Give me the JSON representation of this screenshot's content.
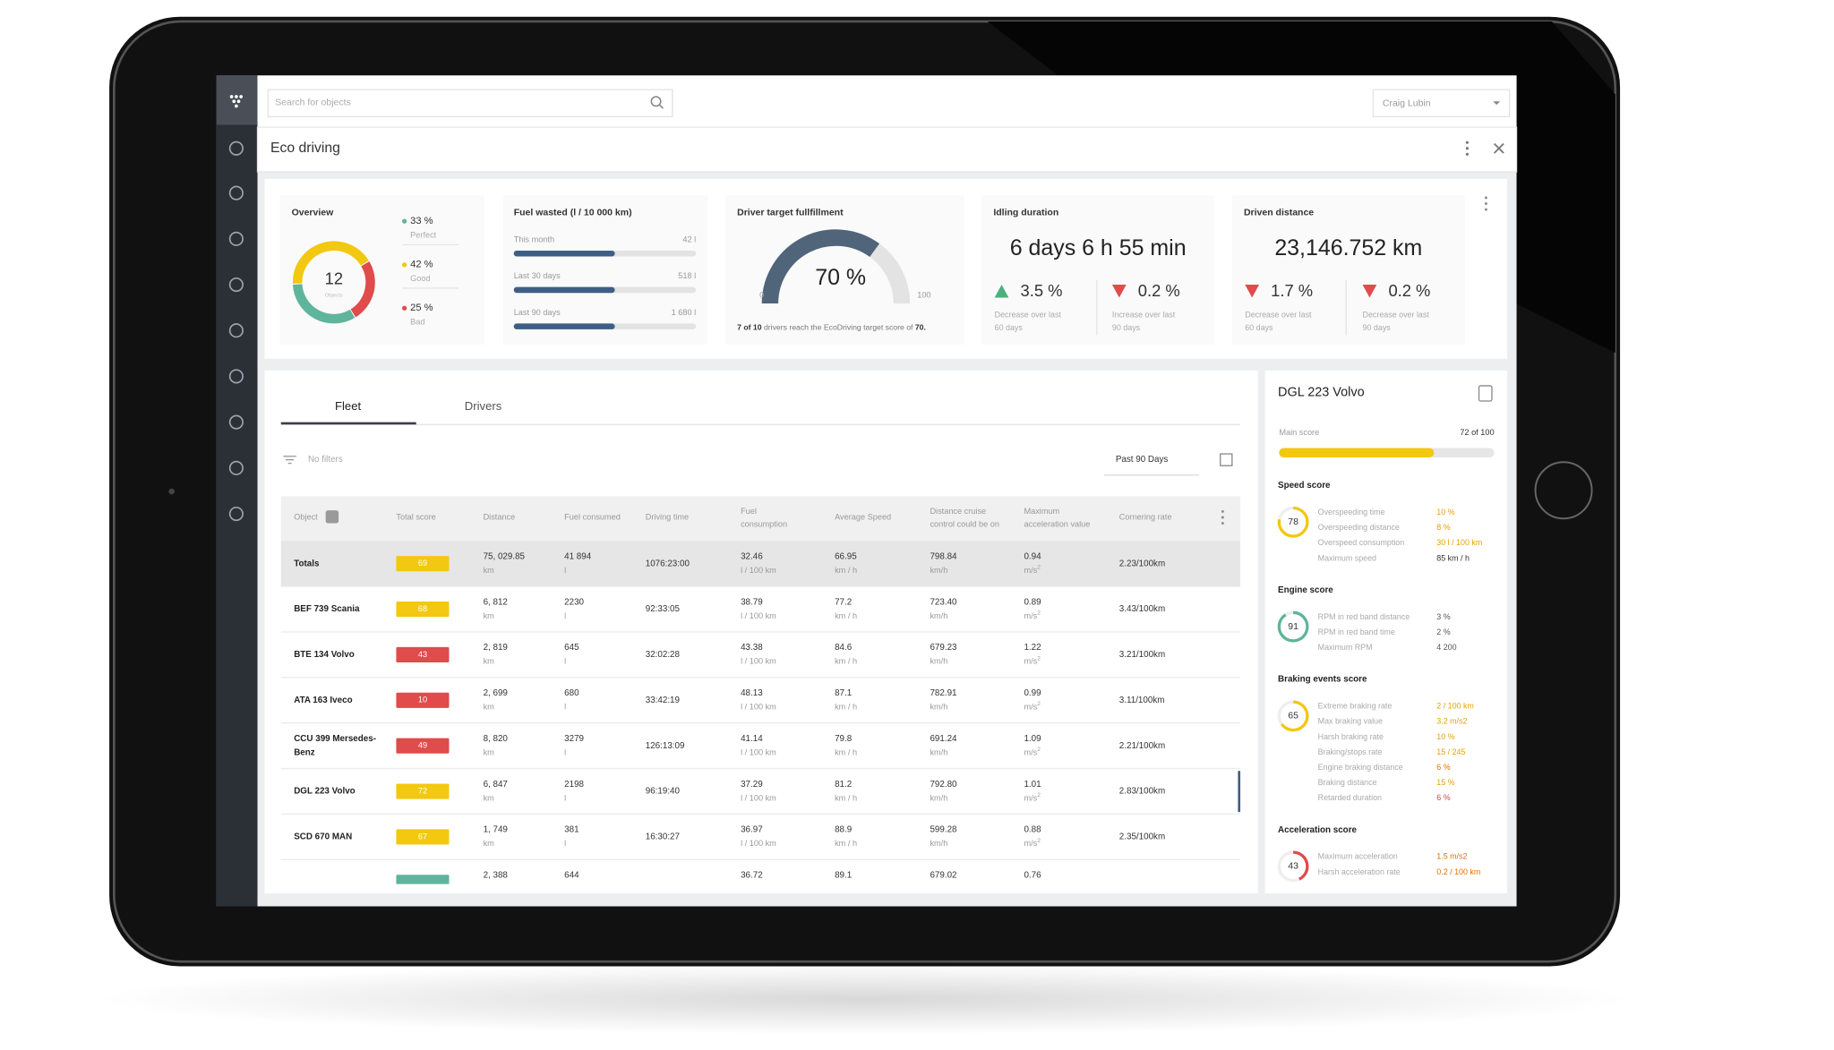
{
  "app": {
    "search_placeholder": "Search for objects",
    "user": "Craig Lubin",
    "page_title": "Eco driving"
  },
  "cards": {
    "overview": {
      "title": "Overview",
      "total": "12",
      "total_label": "Objects",
      "segments": [
        {
          "value": 33,
          "label": "33 %",
          "name": "Perfect",
          "color": "#5fb49c"
        },
        {
          "value": 42,
          "label": "42 %",
          "name": "Good",
          "color": "#f2c811"
        },
        {
          "value": 25,
          "label": "25 %",
          "name": "Bad",
          "color": "#e04b4b"
        }
      ]
    },
    "fuel": {
      "title": "Fuel wasted (l / 10 000 km)",
      "rows": [
        {
          "label": "This month",
          "value": "42 l"
        },
        {
          "label": "Last 30 days",
          "value": "518 l"
        },
        {
          "label": "Last 90 days",
          "value": "1 680 l"
        }
      ]
    },
    "target": {
      "title": "Driver target fullfillment",
      "gauge": {
        "value": 70,
        "label": "70 %"
      },
      "min": 0,
      "max": 100,
      "color": "#50647a",
      "note": [
        {
          "text": "7 of 10",
          "bold": true
        },
        {
          "text": " drivers reach the EcoDriving target score of ",
          "bold": false
        },
        {
          "text": "70.",
          "bold": true
        }
      ]
    },
    "idling": {
      "title": "Idling duration",
      "value": "6 days 6 h 55 min",
      "changes": [
        {
          "dir": "up",
          "color": "#4caf7d",
          "value": "3.5 %",
          "note": [
            "Decrease over last",
            "60 days"
          ]
        },
        {
          "dir": "down",
          "color": "#e04b4b",
          "value": "0.2 %",
          "note": [
            "Increase over last",
            "90 days"
          ]
        }
      ]
    },
    "distance": {
      "title": "Driven distance",
      "value": "23,146.752 km",
      "changes": [
        {
          "dir": "down",
          "color": "#e04b4b",
          "value": "1.7 %",
          "note": [
            "Decrease over last",
            "60 days"
          ]
        },
        {
          "dir": "down",
          "color": "#e04b4b",
          "value": "0.2 %",
          "note": [
            "Decrease over last",
            "90 days"
          ]
        }
      ]
    }
  },
  "table": {
    "tabs": [
      "Fleet",
      "Drivers"
    ],
    "filter": "No filters",
    "period": "Past 90 Days",
    "headers": [
      [
        "Object"
      ],
      [
        "Total score"
      ],
      [
        "Distance"
      ],
      [
        "Fuel consumed"
      ],
      [
        "Driving time"
      ],
      [
        "Fuel",
        "consumption"
      ],
      [
        "Average Speed"
      ],
      [
        "Distance cruise",
        "control could be on"
      ],
      [
        "Maximum",
        "acceleration value"
      ],
      [
        "Cornering rate"
      ]
    ],
    "rows": [
      {
        "name": [
          "Totals"
        ],
        "score": 69,
        "score_color": "#f2c811",
        "cells": [
          [
            "75, 029.85",
            "km"
          ],
          [
            "41 894",
            "l"
          ],
          [
            "1076:23:00"
          ],
          [
            "32.46",
            "l / 100 km"
          ],
          [
            "66.95",
            "km / h"
          ],
          [
            "798.84",
            "km/h"
          ],
          [
            "0.94",
            "m/s",
            "2"
          ],
          [
            "2.23/100km"
          ]
        ]
      },
      {
        "name": [
          "BEF 739  Scania"
        ],
        "score": 68,
        "score_color": "#f2c811",
        "cells": [
          [
            "6, 812",
            "km"
          ],
          [
            "2230",
            "l"
          ],
          [
            "92:33:05"
          ],
          [
            "38.79",
            "l / 100 km"
          ],
          [
            "77.2",
            "km / h"
          ],
          [
            "723.40",
            "km/h"
          ],
          [
            "0.89",
            "m/s",
            "2"
          ],
          [
            "3.43/100km"
          ]
        ]
      },
      {
        "name": [
          "BTE 134 Volvo"
        ],
        "score": 43,
        "score_color": "#e04b4b",
        "cells": [
          [
            "2, 819",
            "km"
          ],
          [
            "645",
            "l"
          ],
          [
            "32:02:28"
          ],
          [
            "43.38",
            "l / 100 km"
          ],
          [
            "84.6",
            "km / h"
          ],
          [
            "679.23",
            "km/h"
          ],
          [
            "1.22",
            "m/s",
            "2"
          ],
          [
            "3.21/100km"
          ]
        ]
      },
      {
        "name": [
          "ATA 163 Iveco"
        ],
        "score": 10,
        "score_color": "#e04b4b",
        "cells": [
          [
            "2, 699",
            "km"
          ],
          [
            "680",
            "l"
          ],
          [
            "33:42:19"
          ],
          [
            "48.13",
            "l / 100 km"
          ],
          [
            "87.1",
            "km / h"
          ],
          [
            "782.91",
            "km/h"
          ],
          [
            "0.99",
            "m/s",
            "2"
          ],
          [
            "3.11/100km"
          ]
        ]
      },
      {
        "name": [
          "CCU 399 Mersedes-",
          "Benz"
        ],
        "score": 49,
        "score_color": "#e04b4b",
        "cells": [
          [
            "8, 820",
            "km"
          ],
          [
            "3279",
            "l"
          ],
          [
            "126:13:09"
          ],
          [
            "41.14",
            "l / 100 km"
          ],
          [
            "79.8",
            "km / h"
          ],
          [
            "691.24",
            "km/h"
          ],
          [
            "1.09",
            "m/s",
            "2"
          ],
          [
            "2.21/100km"
          ]
        ]
      },
      {
        "name": [
          "DGL 223 Volvo"
        ],
        "score": 72,
        "score_color": "#f2c811",
        "cells": [
          [
            "6, 847",
            "km"
          ],
          [
            "2198",
            "l"
          ],
          [
            "96:19:40"
          ],
          [
            "37.29",
            "l / 100 km"
          ],
          [
            "81.2",
            "km / h"
          ],
          [
            "792.80",
            "km/h"
          ],
          [
            "1.01",
            "m/s",
            "2"
          ],
          [
            "2.83/100km"
          ]
        ]
      },
      {
        "name": [
          "SCD 670 MAN"
        ],
        "score": 67,
        "score_color": "#f2c811",
        "cells": [
          [
            "1, 749",
            "km"
          ],
          [
            "381",
            "l"
          ],
          [
            "16:30:27"
          ],
          [
            "36.97",
            "l / 100 km"
          ],
          [
            "88.9",
            "km / h"
          ],
          [
            "599.28",
            "km/h"
          ],
          [
            "0.88",
            "m/s",
            "2"
          ],
          [
            "2.35/100km"
          ]
        ]
      },
      {
        "name": null,
        "score": null,
        "score_color": "#5fb49c",
        "cells": [
          [
            "2, 388"
          ],
          [
            "644"
          ],
          null,
          [
            "36.72"
          ],
          [
            "89.1"
          ],
          [
            "679.02"
          ],
          [
            "0.76"
          ],
          null
        ]
      }
    ]
  },
  "detail": {
    "title": "DGL 223 Volvo",
    "main_score_label": "Main score",
    "main_score": {
      "value": 72,
      "label": "72 of 100"
    },
    "scale_max": 100,
    "bar_color": "#f2c811",
    "sections": [
      {
        "title": "Speed score",
        "score": 78,
        "color": "#f2c811",
        "items": [
          {
            "label": "Overspeeding time",
            "value": "10 %",
            "color": "#e8a000"
          },
          {
            "label": "Overspeeding distance",
            "value": "8 %",
            "color": "#e8a000"
          },
          {
            "label": "Overspeed consumption",
            "value": "30 l / 100 km",
            "color": "#e8a000"
          },
          {
            "label": "Maximum speed",
            "value": "85 km / h",
            "color": "#333333"
          }
        ]
      },
      {
        "title": "Engine score",
        "score": 91,
        "color": "#5fb49c",
        "items": [
          {
            "label": "RPM in red band distance",
            "value": "3 %",
            "color": "#555555"
          },
          {
            "label": "RPM in red band time",
            "value": "2 %",
            "color": "#555555"
          },
          {
            "label": "Maximum RPM",
            "value": "4 200",
            "color": "#555555"
          }
        ]
      },
      {
        "title": "Braking events score",
        "score": 65,
        "color": "#f2c811",
        "items": [
          {
            "label": "Extreme braking rate",
            "value": "2 / 100 km",
            "color": "#e8a000"
          },
          {
            "label": "Max braking value",
            "value": "3.2 m/s2",
            "color": "#e8a000"
          },
          {
            "label": "Harsh braking rate",
            "value": "10 %",
            "color": "#e8a000"
          },
          {
            "label": "Braking/stops rate",
            "value": "15 / 245",
            "color": "#e8a000"
          },
          {
            "label": "Engine braking distance",
            "value": "6 %",
            "color": "#e07000"
          },
          {
            "label": "Braking distance",
            "value": "15 %",
            "color": "#e8a000"
          },
          {
            "label": "Retarded duration",
            "value": "6 %",
            "color": "#c05050"
          }
        ]
      },
      {
        "title": "Acceleration score",
        "score": 43,
        "color": "#e04b4b",
        "items": [
          {
            "label": "Maximum acceleration",
            "value": "1.5 m/s2",
            "color": "#e07000"
          },
          {
            "label": "Harsh acceleration rate",
            "value": "0.2 / 100 km",
            "color": "#e07000"
          }
        ]
      }
    ]
  }
}
